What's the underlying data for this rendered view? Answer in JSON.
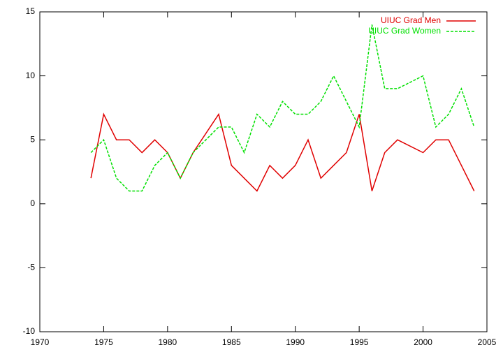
{
  "chart_data": {
    "type": "line",
    "series": [
      {
        "name": "UIUC Grad Men",
        "color": "#e00000",
        "dashed": false,
        "x": [
          1974,
          1975,
          1976,
          1977,
          1978,
          1979,
          1980,
          1981,
          1982,
          1984,
          1985,
          1986,
          1987,
          1988,
          1989,
          1990,
          1991,
          1992,
          1993,
          1994,
          1995,
          1996,
          1997,
          1998,
          2000,
          2001,
          2002,
          2003,
          2004
        ],
        "values": [
          2,
          7,
          5,
          5,
          4,
          5,
          4,
          2,
          4,
          7,
          3,
          2,
          1,
          3,
          2,
          3,
          5,
          2,
          3,
          4,
          7,
          1,
          4,
          5,
          4,
          5,
          5,
          3,
          1
        ]
      },
      {
        "name": "UIUC Grad Women",
        "color": "#00e000",
        "dashed": true,
        "x": [
          1974,
          1975,
          1976,
          1977,
          1978,
          1979,
          1980,
          1981,
          1982,
          1983,
          1984,
          1985,
          1986,
          1987,
          1988,
          1989,
          1990,
          1991,
          1992,
          1993,
          1994,
          1995,
          1996,
          1997,
          1998,
          2000,
          2001,
          2002,
          2003,
          2004
        ],
        "values": [
          4,
          5,
          2,
          1,
          1,
          3,
          4,
          2,
          4,
          5,
          6,
          6,
          4,
          7,
          6,
          8,
          7,
          7,
          8,
          10,
          8,
          6,
          14,
          9,
          9,
          10,
          6,
          7,
          9,
          6
        ]
      }
    ],
    "xlim": [
      1970,
      2005
    ],
    "xticks": [
      1970,
      1975,
      1980,
      1985,
      1990,
      1995,
      2000,
      2005
    ],
    "ylim": [
      -10,
      15
    ],
    "yticks": [
      -10,
      -5,
      0,
      5,
      10,
      15
    ],
    "legend": "top-right"
  }
}
